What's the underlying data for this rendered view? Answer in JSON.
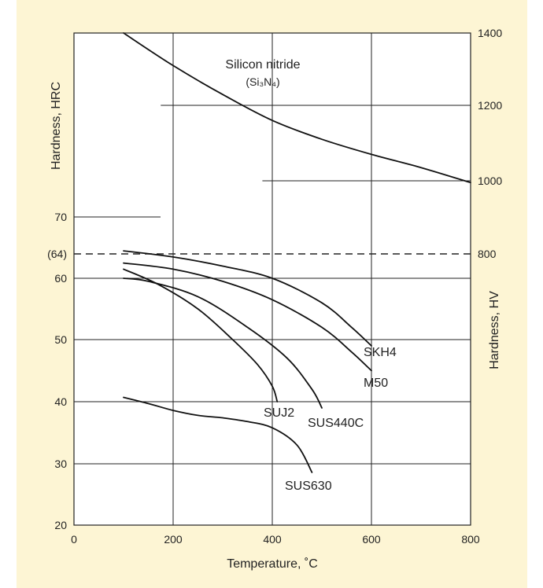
{
  "chart_data": {
    "type": "line",
    "xlabel": "Temperature, ˚C",
    "ylabel_left": "Hardness, HRC",
    "ylabel_right": "Hardness, HV",
    "xlim": [
      0,
      800
    ],
    "x_ticks": [
      0,
      200,
      400,
      600,
      800
    ],
    "y_left_ticks": [
      {
        "label": "20",
        "value": 20
      },
      {
        "label": "30",
        "value": 30
      },
      {
        "label": "40",
        "value": 40
      },
      {
        "label": "50",
        "value": 50
      },
      {
        "label": "60",
        "value": 60
      },
      {
        "label": "(64)",
        "value": 64
      },
      {
        "label": "70",
        "value": 70
      }
    ],
    "y_right_ticks": [
      {
        "label": "800",
        "value": 800
      },
      {
        "label": "1000",
        "value": 1000
      },
      {
        "label": "1200",
        "value": 1200
      },
      {
        "label": "1400",
        "value": 1400
      }
    ],
    "reference_line": {
      "label": "(64)",
      "hrc": 64,
      "hv": 800,
      "style": "dashed"
    },
    "grid": true,
    "series": [
      {
        "name": "SKH4",
        "scale": "HRC",
        "points": [
          [
            100,
            64.5
          ],
          [
            200,
            63.5
          ],
          [
            300,
            62
          ],
          [
            400,
            60
          ],
          [
            500,
            56
          ],
          [
            560,
            52
          ],
          [
            600,
            49
          ]
        ]
      },
      {
        "name": "M50",
        "scale": "HRC",
        "points": [
          [
            100,
            62.5
          ],
          [
            200,
            61.5
          ],
          [
            300,
            59.5
          ],
          [
            400,
            56.5
          ],
          [
            500,
            52
          ],
          [
            560,
            48
          ],
          [
            600,
            45
          ]
        ]
      },
      {
        "name": "SUS440C",
        "scale": "HRC",
        "points": [
          [
            100,
            60
          ],
          [
            150,
            59.5
          ],
          [
            250,
            57
          ],
          [
            350,
            52
          ],
          [
            430,
            47
          ],
          [
            480,
            42
          ],
          [
            500,
            39
          ]
        ]
      },
      {
        "name": "SUJ2",
        "scale": "HRC",
        "points": [
          [
            100,
            61.5
          ],
          [
            170,
            59
          ],
          [
            250,
            55
          ],
          [
            320,
            50
          ],
          [
            370,
            46
          ],
          [
            400,
            42.5
          ],
          [
            410,
            40
          ]
        ]
      },
      {
        "name": "SUS630",
        "scale": "HRC",
        "points": [
          [
            100,
            40.7
          ],
          [
            150,
            39.7
          ],
          [
            200,
            38.6
          ],
          [
            250,
            37.8
          ],
          [
            300,
            37.4
          ],
          [
            350,
            36.8
          ],
          [
            400,
            35.8
          ],
          [
            450,
            33
          ],
          [
            480,
            28.6
          ]
        ]
      },
      {
        "name": "Silicon nitride",
        "subname": "(Si₃N₄)",
        "scale": "HV",
        "points": [
          [
            100,
            1400
          ],
          [
            200,
            1310
          ],
          [
            300,
            1230
          ],
          [
            400,
            1160
          ],
          [
            500,
            1110
          ],
          [
            600,
            1070
          ],
          [
            700,
            1035
          ],
          [
            800,
            995
          ]
        ]
      }
    ]
  }
}
